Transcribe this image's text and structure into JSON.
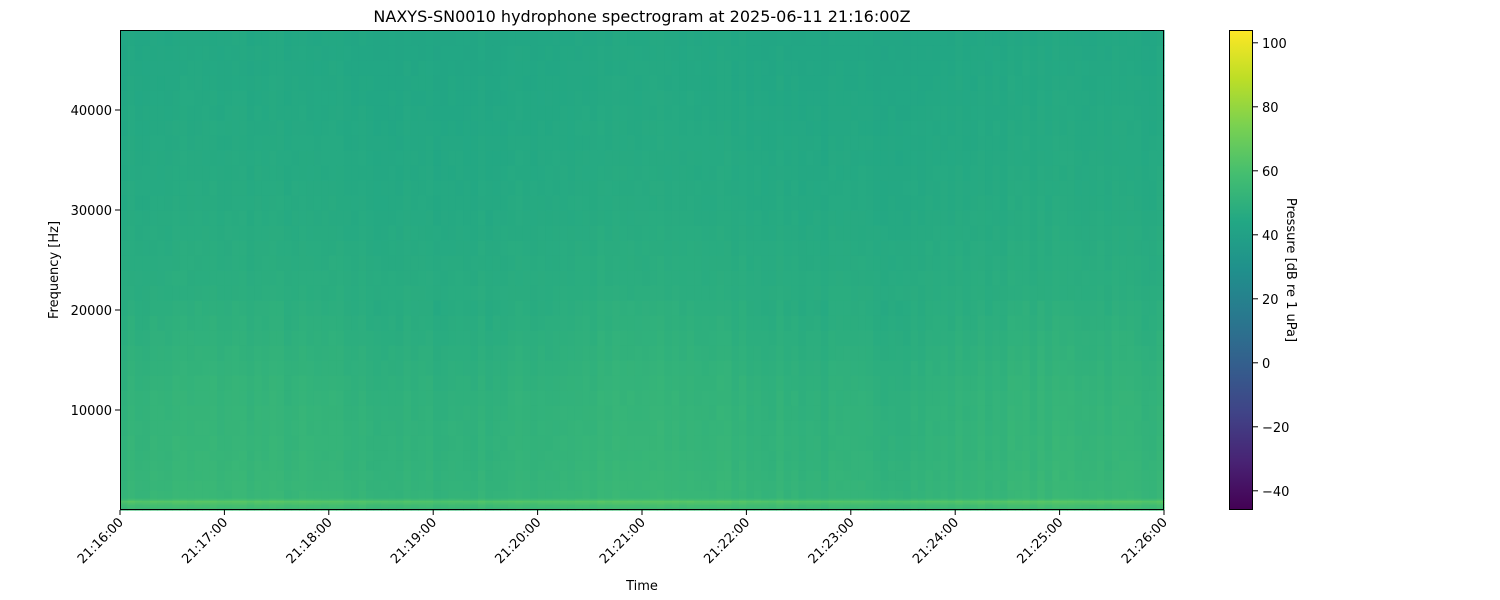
{
  "chart_data": {
    "type": "heatmap",
    "title": "NAXYS-SN0010 hydrophone spectrogram at 2025-06-11 21:16:00Z",
    "xlabel": "Time",
    "ylabel": "Frequency [Hz]",
    "x_range": [
      "21:16:00",
      "21:26:00"
    ],
    "x_ticks": [
      "21:16:00",
      "21:17:00",
      "21:18:00",
      "21:19:00",
      "21:20:00",
      "21:21:00",
      "21:22:00",
      "21:23:00",
      "21:24:00",
      "21:25:00",
      "21:26:00"
    ],
    "ylim": [
      0,
      48000
    ],
    "y_ticks": [
      10000,
      20000,
      30000,
      40000
    ],
    "colormap": "viridis",
    "colorbar": {
      "label": "Pressure [dB re 1 uPa]",
      "range": [
        -46,
        104
      ],
      "ticks": [
        -40,
        -20,
        0,
        20,
        40,
        60,
        80,
        100
      ]
    },
    "frequency_profile_db": [
      {
        "freq_hz": 0,
        "db": 54
      },
      {
        "freq_hz": 500,
        "db": 58
      },
      {
        "freq_hz": 900,
        "db": 63
      },
      {
        "freq_hz": 1200,
        "db": 53
      },
      {
        "freq_hz": 5000,
        "db": 52
      },
      {
        "freq_hz": 12000,
        "db": 51
      },
      {
        "freq_hz": 20000,
        "db": 48
      },
      {
        "freq_hz": 30000,
        "db": 46
      },
      {
        "freq_hz": 48000,
        "db": 44
      }
    ]
  }
}
